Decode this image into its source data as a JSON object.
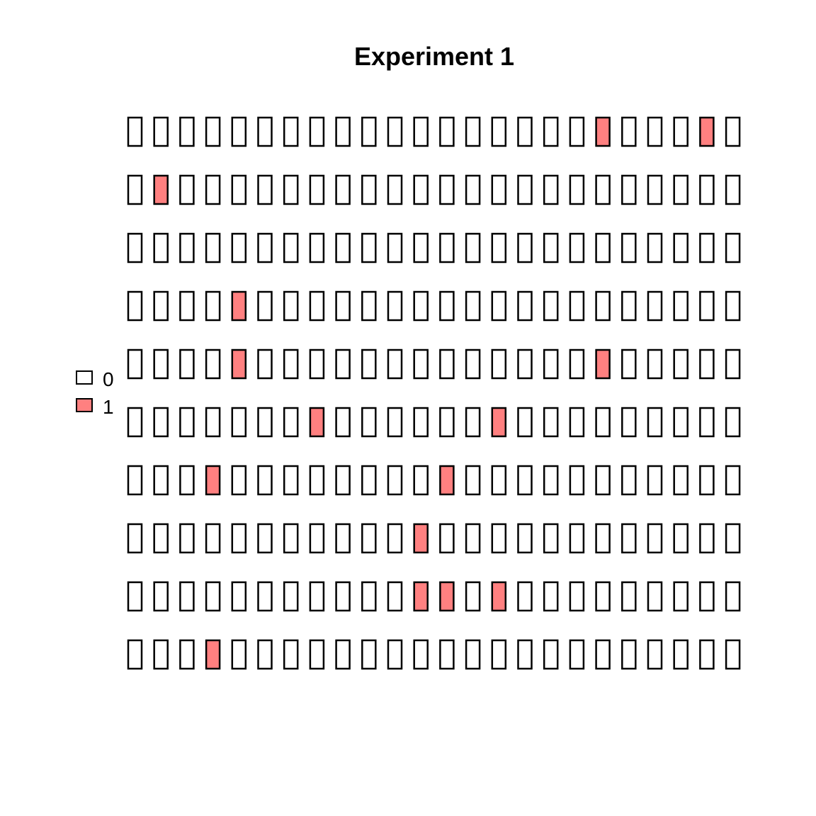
{
  "chart_data": {
    "type": "heatmap",
    "title": "Experiment 1",
    "xlabel": "",
    "ylabel": "",
    "grid": false,
    "legend_placement": "left",
    "legend": [
      {
        "label": "0",
        "color": "#ffffff"
      },
      {
        "label": "1",
        "color": "#ff8080"
      }
    ],
    "rows": [
      [
        0,
        0,
        0,
        0,
        0,
        0,
        0,
        0,
        0,
        0,
        0,
        0,
        0,
        0,
        0,
        0,
        0,
        0,
        1,
        0,
        0,
        0,
        1,
        0
      ],
      [
        0,
        1,
        0,
        0,
        0,
        0,
        0,
        0,
        0,
        0,
        0,
        0,
        0,
        0,
        0,
        0,
        0,
        0,
        0,
        0,
        0,
        0,
        0,
        0
      ],
      [
        0,
        0,
        0,
        0,
        0,
        0,
        0,
        0,
        0,
        0,
        0,
        0,
        0,
        0,
        0,
        0,
        0,
        0,
        0,
        0,
        0,
        0,
        0,
        0
      ],
      [
        0,
        0,
        0,
        0,
        1,
        0,
        0,
        0,
        0,
        0,
        0,
        0,
        0,
        0,
        0,
        0,
        0,
        0,
        0,
        0,
        0,
        0,
        0,
        0
      ],
      [
        0,
        0,
        0,
        0,
        1,
        0,
        0,
        0,
        0,
        0,
        0,
        0,
        0,
        0,
        0,
        0,
        0,
        0,
        1,
        0,
        0,
        0,
        0,
        0
      ],
      [
        0,
        0,
        0,
        0,
        0,
        0,
        0,
        1,
        0,
        0,
        0,
        0,
        0,
        0,
        1,
        0,
        0,
        0,
        0,
        0,
        0,
        0,
        0,
        0
      ],
      [
        0,
        0,
        0,
        1,
        0,
        0,
        0,
        0,
        0,
        0,
        0,
        0,
        1,
        0,
        0,
        0,
        0,
        0,
        0,
        0,
        0,
        0,
        0,
        0
      ],
      [
        0,
        0,
        0,
        0,
        0,
        0,
        0,
        0,
        0,
        0,
        0,
        1,
        0,
        0,
        0,
        0,
        0,
        0,
        0,
        0,
        0,
        0,
        0,
        0
      ],
      [
        0,
        0,
        0,
        0,
        0,
        0,
        0,
        0,
        0,
        0,
        0,
        1,
        1,
        0,
        1,
        0,
        0,
        0,
        0,
        0,
        0,
        0,
        0,
        0
      ],
      [
        0,
        0,
        0,
        1,
        0,
        0,
        0,
        0,
        0,
        0,
        0,
        0,
        0,
        0,
        0,
        0,
        0,
        0,
        0,
        0,
        0,
        0,
        0,
        0
      ]
    ]
  }
}
